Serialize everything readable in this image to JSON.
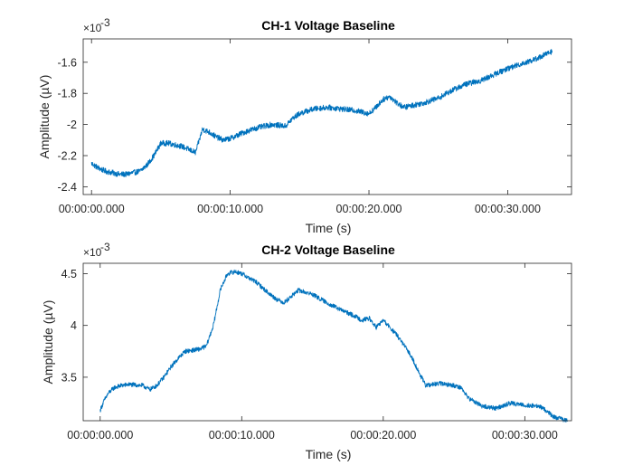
{
  "chart_data": [
    {
      "type": "line",
      "title": "CH-1 Voltage Baseline",
      "xlabel": "Time (s)",
      "ylabel": "Amplitude (µV)",
      "exponent_label": "×10",
      "exponent_power": "-3",
      "xlim": [
        -0.6,
        34.6
      ],
      "ylim": [
        -2.45,
        -1.45
      ],
      "x_ticks": [
        0,
        10,
        20,
        30
      ],
      "x_tick_labels": [
        "00:00:00.000",
        "00:00:10.000",
        "00:00:20.000",
        "00:00:30.000"
      ],
      "y_ticks": [
        -2.4,
        -2.2,
        -2.0,
        -1.8,
        -1.6
      ],
      "y_tick_labels": [
        "-2.4",
        "-2.2",
        "-2",
        "-1.8",
        "-1.6"
      ],
      "color": "#0072BD",
      "noise": 0.018,
      "series": [
        {
          "x": [
            0,
            0.5,
            1,
            1.5,
            2,
            2.5,
            3,
            3.5,
            4,
            4.5,
            5,
            5.5,
            6,
            6.5,
            7,
            7.5,
            8,
            8.5,
            9,
            9.5,
            10,
            11,
            12,
            13,
            14,
            14.5,
            15,
            16,
            17,
            18,
            19,
            20,
            20.5,
            21,
            21.5,
            22,
            22.5,
            23,
            24,
            25,
            26,
            27,
            28,
            29,
            30,
            31,
            32,
            33.2
          ],
          "y": [
            -2.25,
            -2.28,
            -2.3,
            -2.31,
            -2.32,
            -2.32,
            -2.31,
            -2.3,
            -2.26,
            -2.2,
            -2.12,
            -2.12,
            -2.13,
            -2.14,
            -2.16,
            -2.18,
            -2.03,
            -2.05,
            -2.08,
            -2.1,
            -2.09,
            -2.05,
            -2.02,
            -2.0,
            -2.01,
            -1.96,
            -1.93,
            -1.9,
            -1.89,
            -1.9,
            -1.91,
            -1.93,
            -1.89,
            -1.84,
            -1.82,
            -1.86,
            -1.89,
            -1.88,
            -1.86,
            -1.83,
            -1.78,
            -1.74,
            -1.72,
            -1.68,
            -1.64,
            -1.61,
            -1.58,
            -1.53
          ]
        }
      ]
    },
    {
      "type": "line",
      "title": "CH-2 Voltage Baseline",
      "xlabel": "Time (s)",
      "ylabel": "Amplitude (µV)",
      "exponent_label": "×10",
      "exponent_power": "-3",
      "xlim": [
        -1.2,
        33.3
      ],
      "ylim": [
        3.08,
        4.6
      ],
      "x_ticks": [
        0,
        10,
        20,
        30
      ],
      "x_tick_labels": [
        "00:00:00.000",
        "00:00:10.000",
        "00:00:20.000",
        "00:00:30.000"
      ],
      "y_ticks": [
        3.5,
        4.0,
        4.5
      ],
      "y_tick_labels": [
        "3.5",
        "4",
        "4.5"
      ],
      "color": "#0072BD",
      "noise": 0.022,
      "series": [
        {
          "x": [
            0,
            0.3,
            0.6,
            1,
            1.5,
            2,
            3,
            3.5,
            4,
            4.5,
            5,
            5.5,
            6,
            7,
            7.5,
            8,
            8.5,
            9,
            9.5,
            10,
            11,
            12,
            12.5,
            13,
            14,
            15,
            16,
            17,
            18,
            18.5,
            19,
            19.5,
            20,
            21,
            22,
            22.5,
            23,
            24,
            25,
            25.5,
            26,
            27,
            28,
            29,
            30,
            31,
            31.5,
            32,
            33
          ],
          "y": [
            3.18,
            3.28,
            3.35,
            3.4,
            3.42,
            3.43,
            3.42,
            3.38,
            3.42,
            3.5,
            3.6,
            3.68,
            3.75,
            3.77,
            3.8,
            4.0,
            4.35,
            4.5,
            4.52,
            4.5,
            4.42,
            4.3,
            4.25,
            4.22,
            4.34,
            4.3,
            4.22,
            4.15,
            4.09,
            4.05,
            4.07,
            3.98,
            4.05,
            3.9,
            3.7,
            3.55,
            3.42,
            3.44,
            3.42,
            3.4,
            3.3,
            3.22,
            3.2,
            3.25,
            3.23,
            3.22,
            3.18,
            3.12,
            3.08
          ]
        }
      ]
    }
  ]
}
